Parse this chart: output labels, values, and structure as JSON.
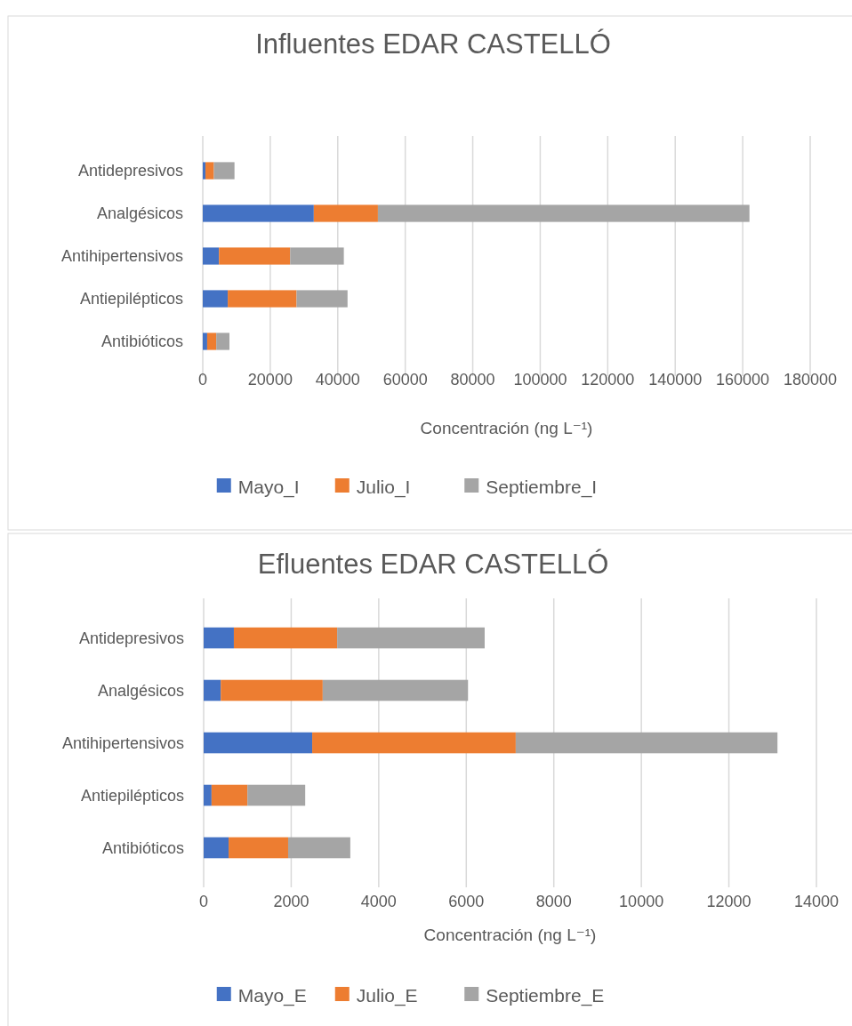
{
  "chart_data": [
    {
      "type": "bar",
      "orientation": "horizontal",
      "stacked": true,
      "title": "Influentes EDAR CASTELLÓ",
      "xlabel": "Concentración (ng L⁻¹)",
      "categories": [
        "Antidepresivos",
        "Analgésicos",
        "Antihipertensivos",
        "Antiepilépticos",
        "Antibióticos"
      ],
      "series": [
        {
          "name": "Mayo_I",
          "color": "#4472c4",
          "values": [
            800,
            32900,
            4800,
            7400,
            1300
          ]
        },
        {
          "name": "Julio_I",
          "color": "#ed7d31",
          "values": [
            2500,
            19000,
            21100,
            20400,
            2700
          ]
        },
        {
          "name": "Septiembre_I",
          "color": "#a5a5a5",
          "values": [
            6100,
            110100,
            15900,
            15100,
            3900
          ]
        }
      ],
      "xlim": [
        0,
        180000
      ],
      "xticks": [
        0,
        20000,
        40000,
        60000,
        80000,
        100000,
        120000,
        140000,
        160000,
        180000
      ],
      "grid": "x",
      "legend": "bottom"
    },
    {
      "type": "bar",
      "orientation": "horizontal",
      "stacked": true,
      "title": "Efluentes EDAR CASTELLÓ",
      "xlabel": "Concentración (ng L⁻¹)",
      "categories": [
        "Antidepresivos",
        "Analgésicos",
        "Antihipertensivos",
        "Antiepilépticos",
        "Antibióticos"
      ],
      "series": [
        {
          "name": "Mayo_E",
          "color": "#4472c4",
          "values": [
            690,
            390,
            2480,
            180,
            570
          ]
        },
        {
          "name": "Julio_E",
          "color": "#ed7d31",
          "values": [
            2360,
            2330,
            4650,
            820,
            1360
          ]
        },
        {
          "name": "Septiembre_E",
          "color": "#a5a5a5",
          "values": [
            3370,
            3320,
            5980,
            1320,
            1420
          ]
        }
      ],
      "xlim": [
        0,
        14000
      ],
      "xticks": [
        0,
        2000,
        4000,
        6000,
        8000,
        10000,
        12000,
        14000
      ],
      "grid": "x",
      "legend": "bottom"
    }
  ]
}
